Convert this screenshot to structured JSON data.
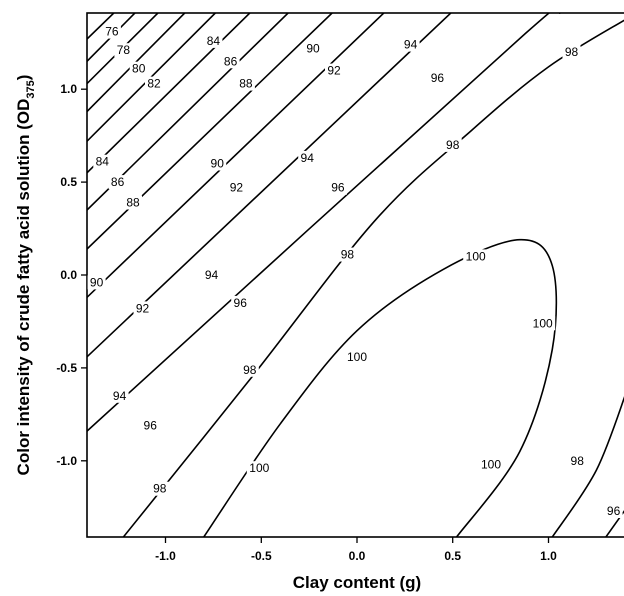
{
  "chart_data": {
    "type": "contour",
    "xlabel": "Clay content (g)",
    "ylabel_main": "Color intensity of crude fatty acid solution (OD",
    "ylabel_sub": "375",
    "ylabel_close": ")",
    "xlim": [
      -1.41,
      1.41
    ],
    "ylim": [
      -1.41,
      1.41
    ],
    "x_ticks": [
      {
        "value": -1.0,
        "label": "-1.0"
      },
      {
        "value": -0.5,
        "label": "-0.5"
      },
      {
        "value": 0.0,
        "label": "0.0"
      },
      {
        "value": 0.5,
        "label": "0.5"
      },
      {
        "value": 1.0,
        "label": "1.0"
      }
    ],
    "y_ticks": [
      {
        "value": 1.0,
        "label": "1.0"
      },
      {
        "value": 0.5,
        "label": "0.5"
      },
      {
        "value": 0.0,
        "label": "0.0"
      },
      {
        "value": -0.5,
        "label": "-0.5"
      },
      {
        "value": -1.0,
        "label": "-1.0"
      }
    ],
    "contour_lines": [
      {
        "level": 76,
        "points": [
          [
            -1.41,
            1.27
          ],
          [
            -1.27,
            1.41
          ]
        ]
      },
      {
        "level": 78,
        "points": [
          [
            -1.41,
            1.15
          ],
          [
            -1.16,
            1.41
          ]
        ]
      },
      {
        "level": 80,
        "points": [
          [
            -1.41,
            1.03
          ],
          [
            -1.04,
            1.41
          ]
        ]
      },
      {
        "level": 82,
        "points": [
          [
            -1.41,
            0.88
          ],
          [
            -0.9,
            1.41
          ]
        ]
      },
      {
        "level": 84,
        "points": [
          [
            -1.41,
            0.72
          ],
          [
            -0.74,
            1.41
          ]
        ]
      },
      {
        "level": 86,
        "points": [
          [
            -1.41,
            0.55
          ],
          [
            -0.56,
            1.41
          ]
        ]
      },
      {
        "level": 88,
        "points": [
          [
            -1.41,
            0.35
          ],
          [
            -0.36,
            1.41
          ]
        ]
      },
      {
        "level": 90,
        "points": [
          [
            -1.41,
            0.14
          ],
          [
            -0.13,
            1.41
          ]
        ]
      },
      {
        "level": 92,
        "points": [
          [
            -1.41,
            -0.12
          ],
          [
            0.14,
            1.41
          ]
        ]
      },
      {
        "level": 94,
        "points": [
          [
            -1.41,
            -0.44
          ],
          [
            0.49,
            1.41
          ]
        ]
      },
      {
        "level": 96,
        "points": [
          [
            -1.41,
            -0.84
          ],
          [
            0.88,
            1.3
          ],
          [
            1.06,
            1.41
          ]
        ]
      },
      {
        "level": 98,
        "points": [
          [
            -1.22,
            -1.41
          ],
          [
            -0.55,
            -0.55
          ],
          [
            0.1,
            0.3
          ],
          [
            0.6,
            0.78
          ],
          [
            1.0,
            1.12
          ],
          [
            1.41,
            1.38
          ]
        ]
      },
      {
        "level": 100,
        "points": [
          [
            -0.8,
            -1.41
          ],
          [
            -0.4,
            -0.8
          ],
          [
            0.0,
            -0.3
          ],
          [
            0.45,
            0.03
          ],
          [
            0.85,
            0.19
          ],
          [
            1.02,
            0.05
          ],
          [
            1.02,
            -0.4
          ],
          [
            0.85,
            -0.95
          ],
          [
            0.52,
            -1.41
          ]
        ]
      },
      {
        "level": 98,
        "points": [
          [
            1.02,
            -1.41
          ],
          [
            1.25,
            -1.05
          ],
          [
            1.41,
            -0.62
          ]
        ]
      },
      {
        "level": 96,
        "points": [
          [
            1.3,
            -1.41
          ],
          [
            1.41,
            -1.25
          ]
        ]
      }
    ],
    "contour_labels": [
      {
        "level": "76",
        "x": -1.28,
        "y": 1.31
      },
      {
        "level": "78",
        "x": -1.22,
        "y": 1.21
      },
      {
        "level": "80",
        "x": -1.14,
        "y": 1.11
      },
      {
        "level": "82",
        "x": -1.06,
        "y": 1.03
      },
      {
        "level": "84",
        "x": -0.75,
        "y": 1.26
      },
      {
        "level": "86",
        "x": -0.66,
        "y": 1.15
      },
      {
        "level": "88",
        "x": -0.58,
        "y": 1.03
      },
      {
        "level": "90",
        "x": -0.23,
        "y": 1.22
      },
      {
        "level": "92",
        "x": -0.12,
        "y": 1.1
      },
      {
        "level": "94",
        "x": 0.28,
        "y": 1.24
      },
      {
        "level": "96",
        "x": 0.42,
        "y": 1.06
      },
      {
        "level": "98",
        "x": 1.12,
        "y": 1.2
      },
      {
        "level": "84",
        "x": -1.33,
        "y": 0.61
      },
      {
        "level": "86",
        "x": -1.25,
        "y": 0.5
      },
      {
        "level": "88",
        "x": -1.17,
        "y": 0.39
      },
      {
        "level": "90",
        "x": -0.73,
        "y": 0.6
      },
      {
        "level": "92",
        "x": -0.63,
        "y": 0.47
      },
      {
        "level": "94",
        "x": -0.26,
        "y": 0.63
      },
      {
        "level": "96",
        "x": -0.1,
        "y": 0.47
      },
      {
        "level": "98",
        "x": 0.5,
        "y": 0.7
      },
      {
        "level": "90",
        "x": -1.36,
        "y": -0.04
      },
      {
        "level": "92",
        "x": -1.12,
        "y": -0.18
      },
      {
        "level": "94",
        "x": -0.76,
        "y": 0.0
      },
      {
        "level": "96",
        "x": -0.61,
        "y": -0.15
      },
      {
        "level": "98",
        "x": -0.05,
        "y": 0.11
      },
      {
        "level": "100",
        "x": 0.62,
        "y": 0.1
      },
      {
        "level": "100",
        "x": 0.97,
        "y": -0.26
      },
      {
        "level": "100",
        "x": 0.0,
        "y": -0.44
      },
      {
        "level": "98",
        "x": -0.56,
        "y": -0.51
      },
      {
        "level": "94",
        "x": -1.24,
        "y": -0.65
      },
      {
        "level": "96",
        "x": -1.08,
        "y": -0.81
      },
      {
        "level": "98",
        "x": -1.03,
        "y": -1.15
      },
      {
        "level": "100",
        "x": -0.51,
        "y": -1.04
      },
      {
        "level": "100",
        "x": 0.7,
        "y": -1.02
      },
      {
        "level": "98",
        "x": 1.15,
        "y": -1.0
      },
      {
        "level": "96",
        "x": 1.34,
        "y": -1.27
      }
    ]
  }
}
